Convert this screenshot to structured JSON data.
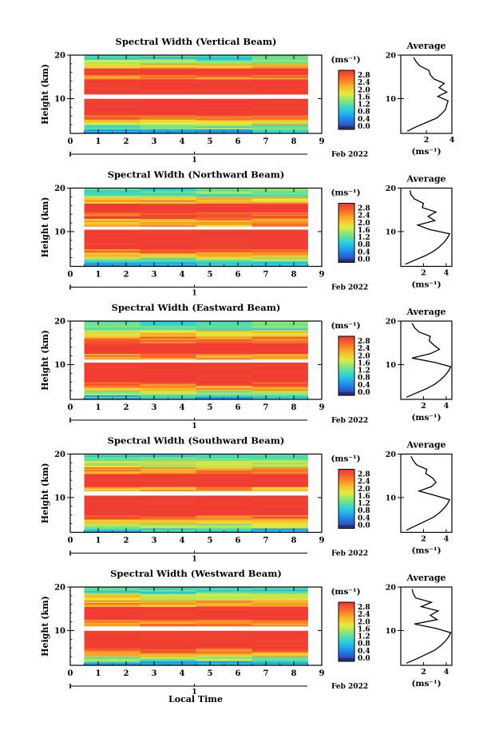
{
  "figure": {
    "xlabel": "Local Time",
    "date_label": "Feb 2022",
    "day_label": "1",
    "unit_label": "(ms⁻¹)",
    "avg_title": "Average",
    "avg_xlabel": "(ms⁻¹)",
    "ylabel": "Height (km)"
  },
  "colorbar": {
    "ticks": [
      "2.8",
      "2.4",
      "2.0",
      "1.6",
      "1.2",
      "0.8",
      "0.4",
      "0.0"
    ]
  },
  "chart_data": [
    {
      "type": "heatmap",
      "title": "Spectral Width (Vertical Beam)",
      "xlabel": "Local Time",
      "ylabel": "Height (km)",
      "xlim": [
        0,
        9
      ],
      "ylim": [
        2,
        20
      ],
      "x_ticks": [
        0,
        1,
        2,
        3,
        4,
        5,
        6,
        7,
        8,
        9
      ],
      "y_ticks": [
        10,
        20
      ],
      "data_x_range": [
        0.5,
        8.5
      ],
      "colorbar_range": [
        0,
        3.0
      ],
      "layers": [
        {
          "h0": 2.0,
          "h1": 3.0,
          "v": 0.9
        },
        {
          "h0": 3.0,
          "h1": 4.0,
          "v": 1.4
        },
        {
          "h0": 4.0,
          "h1": 5.2,
          "v": 2.0
        },
        {
          "h0": 5.2,
          "h1": 6.2,
          "v": 2.5
        },
        {
          "h0": 6.2,
          "h1": 8.5,
          "v": 3.0
        },
        {
          "h0": 8.5,
          "h1": 10.0,
          "v": 3.0
        },
        {
          "h0": 10.0,
          "h1": 11.0,
          "v": null
        },
        {
          "h0": 11.0,
          "h1": 14.5,
          "v": 3.0
        },
        {
          "h0": 14.5,
          "h1": 15.5,
          "v": 2.5
        },
        {
          "h0": 15.5,
          "h1": 17.0,
          "v": 3.0
        },
        {
          "h0": 17.0,
          "h1": 18.0,
          "v": 2.2
        },
        {
          "h0": 18.0,
          "h1": 19.0,
          "v": 1.5
        },
        {
          "h0": 19.0,
          "h1": 20.0,
          "v": 1.2
        }
      ],
      "average_profile": {
        "xlim": [
          0,
          4
        ],
        "x_ticks": [
          2,
          4
        ],
        "ylim": [
          2,
          20
        ],
        "y_ticks": [
          10,
          20
        ],
        "height": [
          2.5,
          3.5,
          4.5,
          5.5,
          6.5,
          7.5,
          8.5,
          9.5,
          10.5,
          11.5,
          12.5,
          13.5,
          14.5,
          15.5,
          16.5,
          17.5,
          18.5,
          19.5
        ],
        "width": [
          0.5,
          1.2,
          2.0,
          2.8,
          3.2,
          3.5,
          3.6,
          3.7,
          2.9,
          3.6,
          3.0,
          3.4,
          2.6,
          2.3,
          2.2,
          1.5,
          1.2,
          1.0
        ]
      }
    },
    {
      "type": "heatmap",
      "title": "Spectral Width (Northward Beam)",
      "xlabel": "Local Time",
      "ylabel": "Height (km)",
      "xlim": [
        0,
        9
      ],
      "ylim": [
        2,
        20
      ],
      "x_ticks": [
        0,
        1,
        2,
        3,
        4,
        5,
        6,
        7,
        8,
        9
      ],
      "y_ticks": [
        10,
        20
      ],
      "data_x_range": [
        0.5,
        8.5
      ],
      "colorbar_range": [
        0,
        3.0
      ],
      "layers": [
        {
          "h0": 2.0,
          "h1": 3.0,
          "v": 1.0
        },
        {
          "h0": 3.0,
          "h1": 4.0,
          "v": 1.5
        },
        {
          "h0": 4.0,
          "h1": 5.0,
          "v": 2.2
        },
        {
          "h0": 5.0,
          "h1": 6.0,
          "v": 2.6
        },
        {
          "h0": 6.0,
          "h1": 10.5,
          "v": 3.0
        },
        {
          "h0": 10.5,
          "h1": 11.2,
          "v": null
        },
        {
          "h0": 11.2,
          "h1": 13.0,
          "v": 2.3
        },
        {
          "h0": 13.0,
          "h1": 14.5,
          "v": 2.8
        },
        {
          "h0": 14.5,
          "h1": 16.5,
          "v": 3.0
        },
        {
          "h0": 16.5,
          "h1": 18.0,
          "v": 2.2
        },
        {
          "h0": 18.0,
          "h1": 20.0,
          "v": 1.4
        }
      ],
      "average_profile": {
        "xlim": [
          0,
          4.5
        ],
        "x_ticks": [
          2,
          4
        ],
        "ylim": [
          2,
          20
        ],
        "y_ticks": [
          10,
          20
        ],
        "height": [
          2.5,
          3.5,
          4.5,
          5.5,
          6.5,
          7.5,
          8.5,
          9.5,
          10.5,
          11.5,
          12.5,
          13.5,
          14.5,
          15.5,
          16.5,
          17.5,
          18.5,
          19.5
        ],
        "width": [
          0.4,
          1.3,
          2.2,
          2.9,
          3.4,
          3.8,
          4.1,
          4.3,
          2.5,
          1.5,
          3.0,
          2.4,
          3.1,
          1.9,
          2.0,
          1.2,
          0.9,
          0.8
        ]
      }
    },
    {
      "type": "heatmap",
      "title": "Spectral Width (Eastward Beam)",
      "xlabel": "Local Time",
      "ylabel": "Height (km)",
      "xlim": [
        0,
        9
      ],
      "ylim": [
        2,
        20
      ],
      "x_ticks": [
        0,
        1,
        2,
        3,
        4,
        5,
        6,
        7,
        8,
        9
      ],
      "y_ticks": [
        10,
        20
      ],
      "data_x_range": [
        0.5,
        8.5
      ],
      "colorbar_range": [
        0,
        3.0
      ],
      "layers": [
        {
          "h0": 2.0,
          "h1": 3.0,
          "v": 1.0
        },
        {
          "h0": 3.0,
          "h1": 4.0,
          "v": 1.6
        },
        {
          "h0": 4.0,
          "h1": 5.0,
          "v": 2.3
        },
        {
          "h0": 5.0,
          "h1": 6.0,
          "v": 2.7
        },
        {
          "h0": 6.0,
          "h1": 10.5,
          "v": 3.0
        },
        {
          "h0": 10.5,
          "h1": 11.2,
          "v": null
        },
        {
          "h0": 11.2,
          "h1": 12.5,
          "v": 2.4
        },
        {
          "h0": 12.5,
          "h1": 15.0,
          "v": 3.0
        },
        {
          "h0": 15.0,
          "h1": 16.5,
          "v": 2.5
        },
        {
          "h0": 16.5,
          "h1": 18.0,
          "v": 2.0
        },
        {
          "h0": 18.0,
          "h1": 20.0,
          "v": 1.3
        }
      ],
      "average_profile": {
        "xlim": [
          0,
          4.5
        ],
        "x_ticks": [
          2,
          4
        ],
        "ylim": [
          2,
          20
        ],
        "y_ticks": [
          10,
          20
        ],
        "height": [
          2.5,
          3.5,
          4.5,
          5.5,
          6.5,
          7.5,
          8.5,
          9.5,
          10.5,
          11.5,
          12.5,
          13.5,
          14.5,
          15.5,
          16.5,
          17.5,
          18.5,
          19.5
        ],
        "width": [
          0.5,
          1.4,
          2.3,
          3.0,
          3.5,
          3.9,
          4.2,
          4.4,
          3.0,
          1.0,
          2.6,
          3.4,
          2.9,
          2.5,
          2.6,
          1.6,
          1.2,
          1.0
        ]
      }
    },
    {
      "type": "heatmap",
      "title": "Spectral Width (Southward Beam)",
      "xlabel": "Local Time",
      "ylabel": "Height (km)",
      "xlim": [
        0,
        9
      ],
      "ylim": [
        2,
        20
      ],
      "x_ticks": [
        0,
        1,
        2,
        3,
        4,
        5,
        6,
        7,
        8,
        9
      ],
      "y_ticks": [
        10,
        20
      ],
      "data_x_range": [
        0.5,
        8.5
      ],
      "colorbar_range": [
        0,
        3.0
      ],
      "layers": [
        {
          "h0": 2.0,
          "h1": 3.0,
          "v": 1.0
        },
        {
          "h0": 3.0,
          "h1": 4.0,
          "v": 1.6
        },
        {
          "h0": 4.0,
          "h1": 5.0,
          "v": 2.2
        },
        {
          "h0": 5.0,
          "h1": 6.0,
          "v": 2.7
        },
        {
          "h0": 6.0,
          "h1": 10.5,
          "v": 3.0
        },
        {
          "h0": 10.5,
          "h1": 11.5,
          "v": null
        },
        {
          "h0": 11.5,
          "h1": 12.5,
          "v": 2.3
        },
        {
          "h0": 12.5,
          "h1": 15.5,
          "v": 3.0
        },
        {
          "h0": 15.5,
          "h1": 17.0,
          "v": 2.4
        },
        {
          "h0": 17.0,
          "h1": 18.5,
          "v": 1.8
        },
        {
          "h0": 18.5,
          "h1": 20.0,
          "v": 1.2
        }
      ],
      "average_profile": {
        "xlim": [
          0,
          4.5
        ],
        "x_ticks": [
          2,
          4
        ],
        "ylim": [
          2,
          20
        ],
        "y_ticks": [
          10,
          20
        ],
        "height": [
          2.5,
          3.5,
          4.5,
          5.5,
          6.5,
          7.5,
          8.5,
          9.5,
          10.5,
          11.5,
          12.5,
          13.5,
          14.5,
          15.5,
          16.5,
          17.5,
          18.5,
          19.5
        ],
        "width": [
          0.5,
          1.3,
          2.1,
          2.9,
          3.4,
          3.8,
          4.1,
          4.3,
          3.0,
          1.6,
          2.7,
          3.1,
          2.8,
          2.2,
          2.3,
          1.4,
          1.1,
          0.9
        ]
      }
    },
    {
      "type": "heatmap",
      "title": "Spectral Width (Westward Beam)",
      "xlabel": "Local Time",
      "ylabel": "Height (km)",
      "xlim": [
        0,
        9
      ],
      "ylim": [
        2,
        20
      ],
      "x_ticks": [
        0,
        1,
        2,
        3,
        4,
        5,
        6,
        7,
        8,
        9
      ],
      "y_ticks": [
        10,
        20
      ],
      "data_x_range": [
        0.5,
        8.5
      ],
      "colorbar_range": [
        0,
        3.0
      ],
      "layers": [
        {
          "h0": 2.0,
          "h1": 3.0,
          "v": 1.0
        },
        {
          "h0": 3.0,
          "h1": 4.0,
          "v": 1.5
        },
        {
          "h0": 4.0,
          "h1": 5.0,
          "v": 2.2
        },
        {
          "h0": 5.0,
          "h1": 6.0,
          "v": 2.6
        },
        {
          "h0": 6.0,
          "h1": 10.0,
          "v": 3.0
        },
        {
          "h0": 10.0,
          "h1": 11.0,
          "v": null
        },
        {
          "h0": 11.0,
          "h1": 12.5,
          "v": 2.4
        },
        {
          "h0": 12.5,
          "h1": 15.5,
          "v": 3.0
        },
        {
          "h0": 15.5,
          "h1": 17.0,
          "v": 2.3
        },
        {
          "h0": 17.0,
          "h1": 18.5,
          "v": 1.9
        },
        {
          "h0": 18.5,
          "h1": 20.0,
          "v": 1.2
        }
      ],
      "average_profile": {
        "xlim": [
          0,
          4.5
        ],
        "x_ticks": [
          2,
          4
        ],
        "ylim": [
          2,
          20
        ],
        "y_ticks": [
          10,
          20
        ],
        "height": [
          2.5,
          3.5,
          4.5,
          5.5,
          6.5,
          7.5,
          8.5,
          9.5,
          10.5,
          11.5,
          12.5,
          13.5,
          14.5,
          15.5,
          16.5,
          17.5,
          18.5,
          19.5
        ],
        "width": [
          0.5,
          1.4,
          2.2,
          3.0,
          3.5,
          3.9,
          4.2,
          4.4,
          3.1,
          1.2,
          3.2,
          2.6,
          3.3,
          1.8,
          2.7,
          1.3,
          1.1,
          1.0
        ]
      }
    }
  ]
}
